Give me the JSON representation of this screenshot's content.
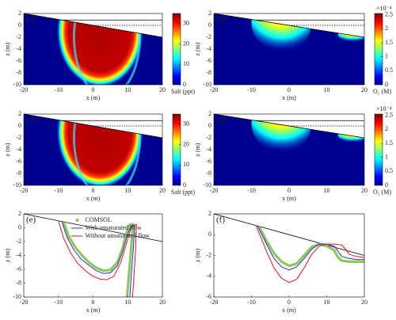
{
  "chart_data": [
    {
      "type": "heatmap",
      "field": "salt",
      "panel_label": "(a)",
      "xlabel": "x (m)",
      "ylabel": "z (m)",
      "xlim": [
        -20,
        20
      ],
      "ylim": [
        -10,
        2
      ],
      "xticks": [
        -20,
        -10,
        0,
        10,
        20
      ],
      "yticks": [
        -10,
        -8,
        -6,
        -4,
        -2,
        0,
        2
      ],
      "beach": {
        "x": [
          -20,
          20
        ],
        "z": [
          2,
          -2
        ]
      },
      "tide_levels": [
        0.9,
        0
      ],
      "colorbar": {
        "label": "Salt (ppt)",
        "lim": [
          0,
          35
        ],
        "ticks": [
          0,
          10,
          20,
          30
        ]
      }
    },
    {
      "type": "heatmap",
      "field": "oxygen",
      "panel_label": "(b)",
      "xlabel": "x (m)",
      "ylabel": "z (m)",
      "xlim": [
        -20,
        20
      ],
      "ylim": [
        -10,
        2
      ],
      "xticks": [
        -20,
        -10,
        0,
        10,
        20
      ],
      "yticks": [
        -10,
        -8,
        -6,
        -4,
        -2,
        0,
        2
      ],
      "beach": {
        "x": [
          -20,
          20
        ],
        "z": [
          2,
          -2
        ]
      },
      "tide_levels": [
        0.9,
        0
      ],
      "colorbar": {
        "label": "O₂ (M)",
        "scale_label": "×10⁻⁴",
        "lim": [
          0,
          2.55
        ],
        "ticks": [
          0,
          0.5,
          1,
          1.5,
          2,
          2.5
        ]
      }
    },
    {
      "type": "heatmap",
      "field": "salt",
      "panel_label": "(c)",
      "xlabel": "x (m)",
      "ylabel": "z (m)",
      "xlim": [
        -20,
        20
      ],
      "ylim": [
        -10,
        2
      ],
      "xticks": [
        -20,
        -10,
        0,
        10,
        20
      ],
      "yticks": [
        -10,
        -8,
        -6,
        -4,
        -2,
        0,
        2
      ],
      "beach": {
        "x": [
          -20,
          20
        ],
        "z": [
          2,
          -2
        ]
      },
      "tide_levels": [
        0.9,
        0
      ],
      "colorbar": {
        "label": "Salt (ppt)",
        "lim": [
          0,
          35
        ],
        "ticks": [
          0,
          10,
          20,
          30
        ]
      }
    },
    {
      "type": "heatmap",
      "field": "oxygen",
      "panel_label": "(d)",
      "xlabel": "x (m)",
      "ylabel": "z (m)",
      "xlim": [
        -20,
        20
      ],
      "ylim": [
        -10,
        2
      ],
      "xticks": [
        -20,
        -10,
        0,
        10,
        20
      ],
      "yticks": [
        -10,
        -8,
        -6,
        -4,
        -2,
        0,
        2
      ],
      "beach": {
        "x": [
          -20,
          20
        ],
        "z": [
          2,
          -2
        ]
      },
      "tide_levels": [
        0.9,
        0
      ],
      "colorbar": {
        "label": "O₂ (M)",
        "scale_label": "×10⁻⁴",
        "lim": [
          0,
          2.55
        ],
        "ticks": [
          0,
          0.5,
          1,
          1.5,
          2,
          2.5
        ]
      }
    },
    {
      "type": "line",
      "panel_label": "(e)",
      "xlabel": "x (m)",
      "ylabel": "z (m)",
      "legend": "top-center",
      "xlim": [
        -20,
        20
      ],
      "ylim": [
        -10,
        2
      ],
      "xticks": [
        -20,
        -10,
        0,
        10,
        20
      ],
      "yticks": [
        -10,
        -8,
        -6,
        -4,
        -2,
        0,
        2
      ],
      "beach": {
        "x": [
          -20,
          20
        ],
        "z": [
          2,
          -2
        ]
      },
      "series": [
        {
          "name": "COMSOL",
          "color": "#8cc95a",
          "x": [
            -8.5,
            -7,
            -5,
            -3,
            -1,
            1,
            3,
            5,
            7,
            8.5,
            9.5,
            10.5,
            11.5,
            11,
            10.3,
            9.8
          ],
          "y": [
            0.8,
            -1.3,
            -2.9,
            -4.1,
            -5.1,
            -5.8,
            -6.2,
            -6.1,
            -5,
            -3,
            -1,
            0.4,
            0.5,
            -3,
            -7,
            -10
          ]
        },
        {
          "name": "With unsaturated flow",
          "color": "#1f2fd0",
          "x": [
            -9,
            -7.5,
            -5.5,
            -3.5,
            -1,
            1,
            3,
            5,
            7,
            8.5,
            9.8,
            11,
            12,
            11.6,
            11,
            10.6
          ],
          "y": [
            0.9,
            -1.4,
            -3.2,
            -4.5,
            -5.5,
            -6.2,
            -6.6,
            -6.5,
            -5.5,
            -3.5,
            -1.2,
            0.3,
            0.4,
            -3,
            -7,
            -10
          ]
        },
        {
          "name": "Without unsaturated flow",
          "color": "#e01818",
          "x": [
            -10,
            -8.5,
            -6.5,
            -4.5,
            -2,
            0,
            2,
            4,
            6,
            8,
            9.5,
            11,
            12.5,
            12.3,
            11.8,
            11.4
          ],
          "y": [
            1,
            -1.5,
            -3.6,
            -5.1,
            -6.3,
            -7,
            -7.4,
            -7.5,
            -7,
            -5,
            -2.5,
            0,
            0.5,
            -3,
            -7,
            -10
          ]
        }
      ]
    },
    {
      "type": "line",
      "panel_label": "(f)",
      "xlabel": "x (m)",
      "ylabel": "z (m)",
      "xlim": [
        -20,
        20
      ],
      "ylim": [
        -6,
        2
      ],
      "xticks": [
        -20,
        -10,
        0,
        10,
        20
      ],
      "yticks": [
        -6,
        -4,
        -2,
        0,
        2
      ],
      "beach": {
        "x": [
          -20,
          20
        ],
        "z": [
          2,
          -2
        ]
      },
      "series": [
        {
          "color": "#8cc95a",
          "x": [
            -8,
            -6,
            -4,
            -2,
            0,
            2,
            4,
            6,
            8,
            10,
            12,
            13,
            14,
            16,
            18,
            20
          ],
          "y": [
            0.8,
            -0.6,
            -1.8,
            -2.6,
            -3,
            -2.8,
            -2,
            -1.2,
            -0.9,
            -1.1,
            -1.5,
            -2.2,
            -2.5,
            -2.6,
            -2.6,
            -2.6
          ]
        },
        {
          "color": "#1f2fd0",
          "x": [
            -8.3,
            -6,
            -4,
            -2,
            0,
            2,
            4,
            6,
            8,
            10,
            12,
            13,
            14,
            16,
            18,
            20
          ],
          "y": [
            0.8,
            -0.9,
            -2.3,
            -3.1,
            -3.4,
            -3.1,
            -2.3,
            -1.4,
            -0.9,
            -0.9,
            -1.1,
            -1.6,
            -2.1,
            -2.3,
            -2.4,
            -2.4
          ]
        },
        {
          "color": "#e01818",
          "x": [
            -8.8,
            -6,
            -4,
            -2,
            0,
            2,
            4,
            6,
            8,
            10,
            12,
            14,
            15,
            16,
            18,
            20
          ],
          "y": [
            0.9,
            -1.6,
            -3.2,
            -4.2,
            -4.6,
            -4.3,
            -3.2,
            -1.9,
            -1.1,
            -0.9,
            -0.9,
            -1,
            -1.4,
            -1.9,
            -2.1,
            -2.2
          ]
        }
      ]
    }
  ]
}
